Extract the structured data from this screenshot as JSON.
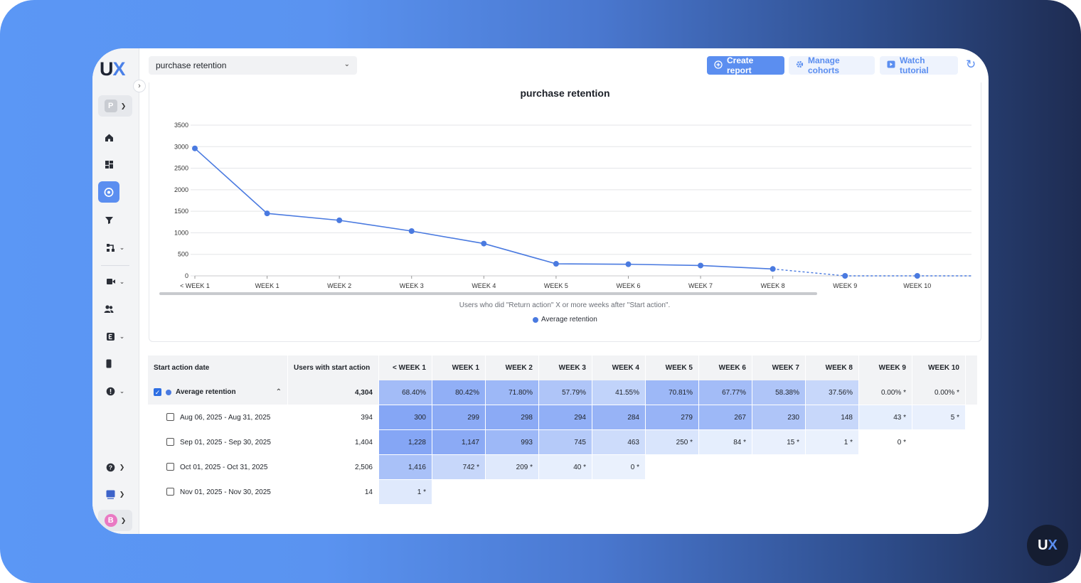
{
  "brand": {
    "logo_u": "U",
    "logo_x": "X",
    "badge_u": "U",
    "badge_x": "X"
  },
  "sidebar": {
    "project_initial": "P",
    "user_initial": "B"
  },
  "header": {
    "report_name": "purchase retention",
    "create_report": "Create report",
    "manage_cohorts": "Manage cohorts",
    "watch_tutorial": "Watch tutorial"
  },
  "chart_data": {
    "type": "line",
    "title": "purchase retention",
    "categories": [
      "< WEEK 1",
      "WEEK 1",
      "WEEK 2",
      "WEEK 3",
      "WEEK 4",
      "WEEK 5",
      "WEEK 6",
      "WEEK 7",
      "WEEK 8",
      "WEEK 9",
      "WEEK 10"
    ],
    "series": [
      {
        "name": "Average retention",
        "values": [
          2960,
          1450,
          1290,
          1040,
          750,
          280,
          270,
          240,
          160,
          0,
          0
        ]
      }
    ],
    "projected_from_index": 8,
    "y_ticks": [
      0,
      500,
      1000,
      1500,
      2000,
      2500,
      3000,
      3500
    ],
    "ylim": [
      0,
      3500
    ],
    "caption": "Users who did \"Return action\" X or more weeks after \"Start action\".",
    "legend": "Average retention",
    "color": "#4a7ae0"
  },
  "table": {
    "headers": [
      "Start action date",
      "Users with start action",
      "< WEEK 1",
      "WEEK 1",
      "WEEK 2",
      "WEEK 3",
      "WEEK 4",
      "WEEK 5",
      "WEEK 6",
      "WEEK 7",
      "WEEK 8",
      "WEEK 9",
      "WEEK 10"
    ],
    "average": {
      "label": "Average retention",
      "users": "4,304",
      "cells": [
        "68.40%",
        "80.42%",
        "71.80%",
        "57.79%",
        "41.55%",
        "70.81%",
        "67.77%",
        "58.38%",
        "37.56%",
        "0.00% *",
        "0.00% *"
      ],
      "intensity": [
        0.6,
        0.75,
        0.65,
        0.5,
        0.35,
        0.65,
        0.6,
        0.5,
        0.3,
        0,
        0
      ]
    },
    "rows": [
      {
        "label": "Aug 06, 2025 - Aug 31, 2025",
        "users": "394",
        "cells": [
          "300",
          "299",
          "298",
          "294",
          "284",
          "279",
          "267",
          "230",
          "148",
          "43 *",
          "5 *"
        ],
        "intensity": [
          0.85,
          0.8,
          0.8,
          0.75,
          0.7,
          0.7,
          0.65,
          0.5,
          0.3,
          0.05,
          0.02
        ]
      },
      {
        "label": "Sep 01, 2025 - Sep 30, 2025",
        "users": "1,404",
        "cells": [
          "1,228",
          "1,147",
          "993",
          "745",
          "463",
          "250 *",
          "84 *",
          "15 *",
          "1 *",
          "0 *"
        ],
        "intensity": [
          0.85,
          0.8,
          0.65,
          0.45,
          0.25,
          0.15,
          0.05,
          0.02,
          0.01,
          0
        ]
      },
      {
        "label": "Oct 01, 2025 - Oct 31, 2025",
        "users": "2,506",
        "cells": [
          "1,416",
          "742 *",
          "209 *",
          "40 *",
          "0 *"
        ],
        "intensity": [
          0.55,
          0.3,
          0.1,
          0.03,
          0.01
        ]
      },
      {
        "label": "Nov 01, 2025 - Nov 30, 2025",
        "users": "14",
        "cells": [
          "1 *"
        ],
        "intensity": [
          0.1
        ]
      }
    ]
  }
}
